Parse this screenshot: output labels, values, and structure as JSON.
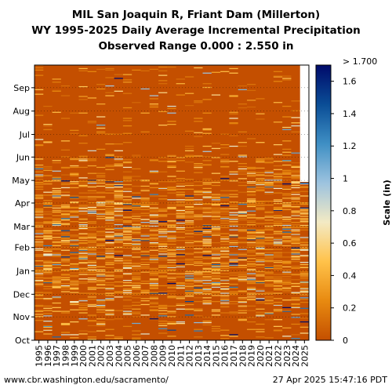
{
  "chart_data": {
    "type": "heatmap",
    "title_lines": [
      "MIL San Joaquin R, Friant Dam (Millerton)",
      "WY 1995-2025 Daily Average Incremental Precipitation",
      "Observed Range 0.000 : 2.550 in"
    ],
    "x_tick_labels": [
      "1995",
      "1996",
      "1997",
      "1998",
      "1999",
      "2000",
      "2001",
      "2002",
      "2003",
      "2004",
      "2005",
      "2006",
      "2007",
      "2008",
      "2009",
      "2010",
      "2011",
      "2012",
      "2013",
      "2014",
      "2015",
      "2016",
      "2017",
      "2018",
      "2019",
      "2020",
      "2021",
      "2022",
      "2023",
      "2024",
      "2025"
    ],
    "y_tick_labels": [
      "Oct",
      "Nov",
      "Dec",
      "Jan",
      "Feb",
      "Mar",
      "Apr",
      "May",
      "Jun",
      "Jul",
      "Aug",
      "Sep"
    ],
    "colorbar": {
      "label": "Scale (in)",
      "min": 0,
      "max": 1.7,
      "ticks": [
        "0",
        "0.2",
        "0.4",
        "0.6",
        "0.8",
        "1",
        "1.2",
        "1.4",
        "1.6"
      ],
      "max_label": "> 1.700",
      "stops": [
        "#c44f00",
        "#e88a10",
        "#ffc24a",
        "#f3eac4",
        "#9dc3df",
        "#3f8fc4",
        "#0a4d96",
        "#000a6a"
      ]
    },
    "last_year_data_through": "Apr 27",
    "background_value": 0
  },
  "footer": {
    "left": "www.cbr.washington.edu/sacramento/",
    "right": "27 Apr 2025 15:47:16 PDT"
  }
}
